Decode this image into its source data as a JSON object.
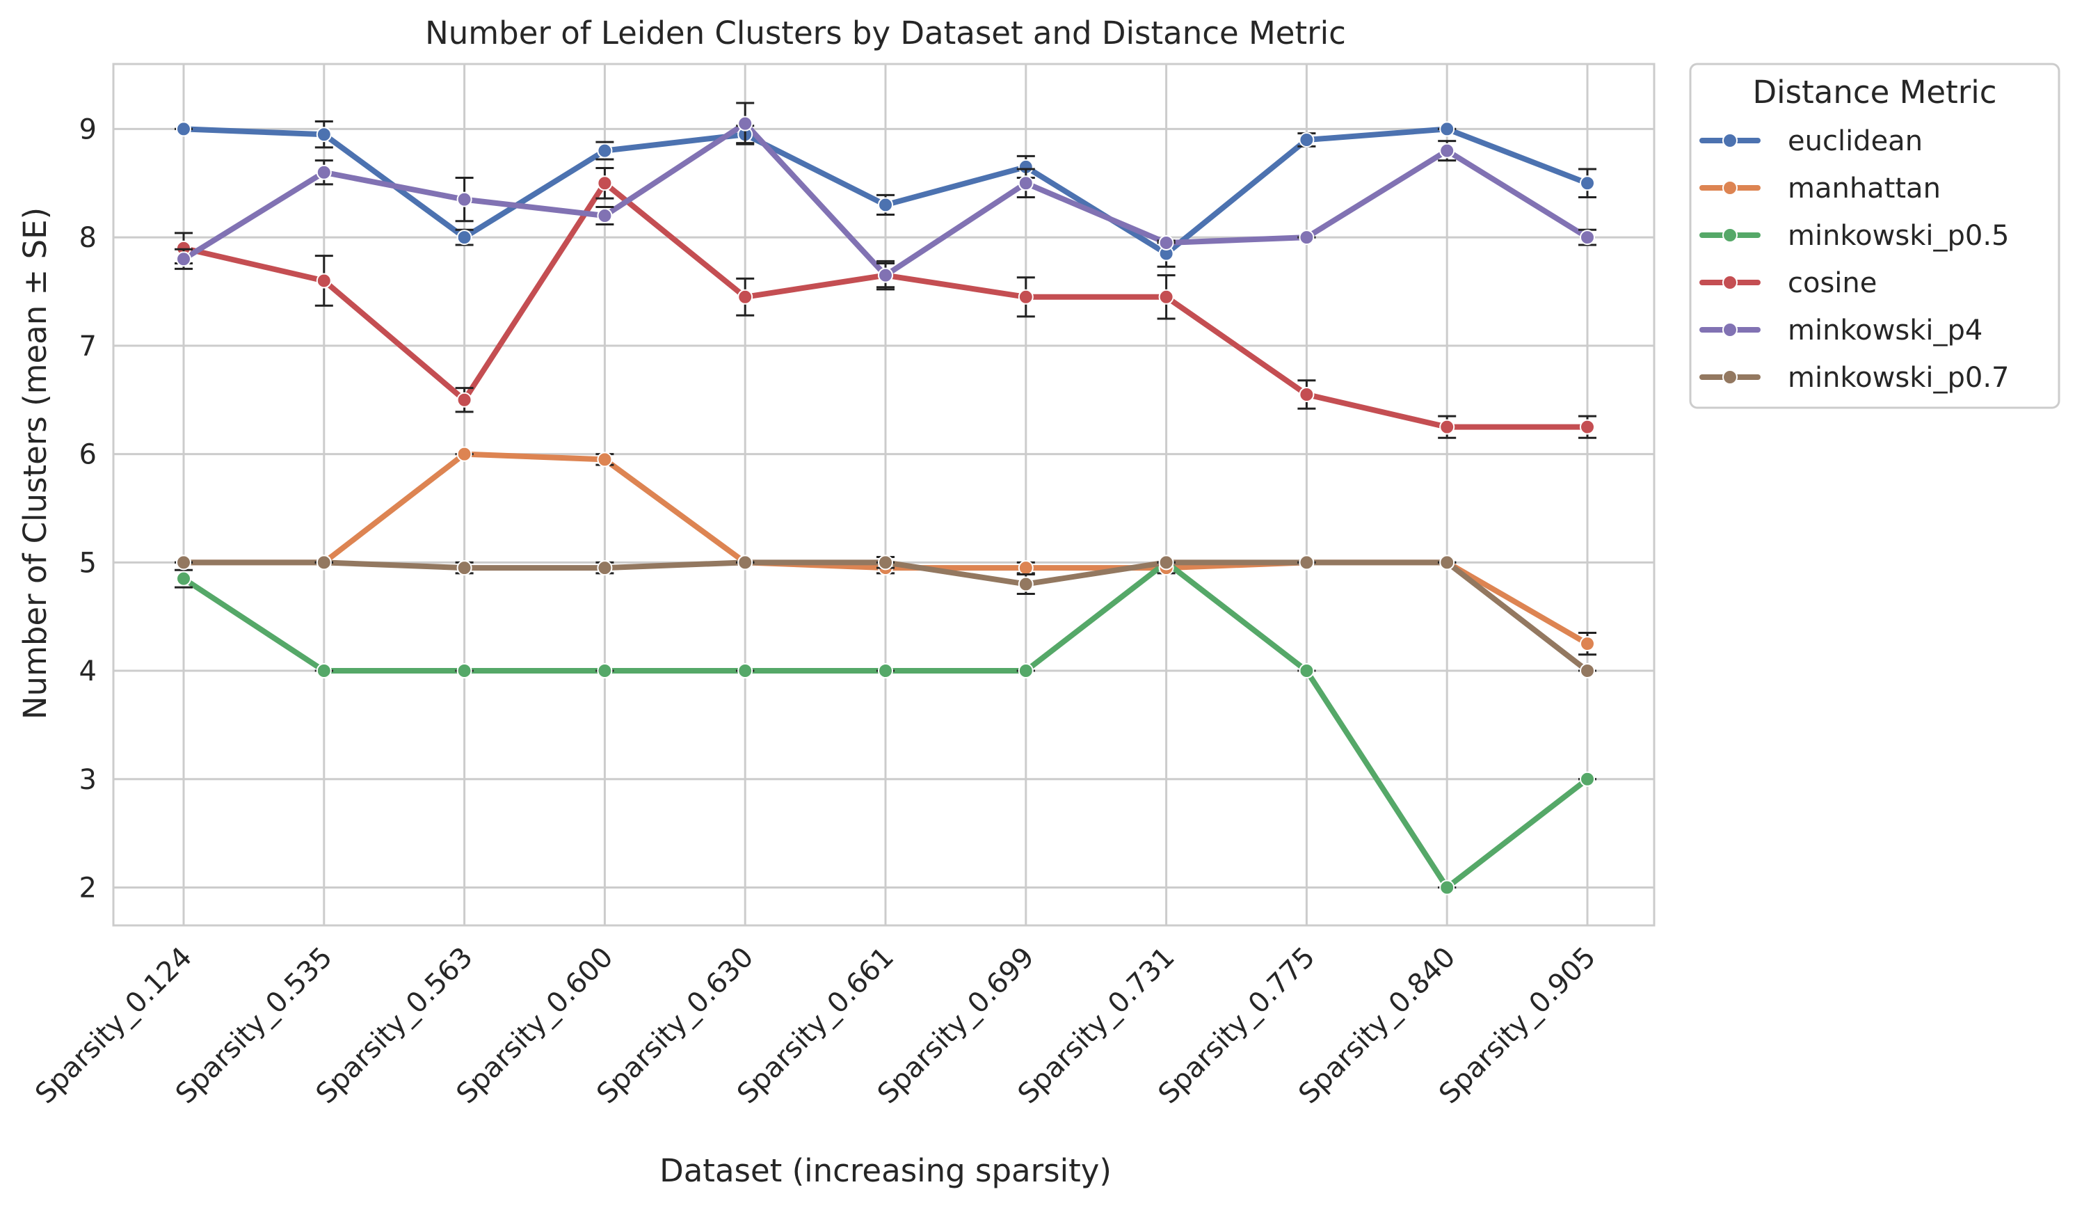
{
  "chart_data": {
    "type": "line",
    "title": "Number of Leiden Clusters by Dataset and Distance Metric",
    "xlabel": "Dataset (increasing sparsity)",
    "ylabel": "Number of Clusters (mean ± SE)",
    "categories": [
      "Sparsity_0.124",
      "Sparsity_0.535",
      "Sparsity_0.563",
      "Sparsity_0.600",
      "Sparsity_0.630",
      "Sparsity_0.661",
      "Sparsity_0.699",
      "Sparsity_0.731",
      "Sparsity_0.775",
      "Sparsity_0.840",
      "Sparsity_0.905"
    ],
    "yticks": [
      2,
      3,
      4,
      5,
      6,
      7,
      8,
      9
    ],
    "ylim": [
      1.65,
      9.6
    ],
    "grid": true,
    "legend": {
      "title": "Distance Metric",
      "placement": "outside-upper-right"
    },
    "series": [
      {
        "name": "euclidean",
        "color": "#4c72b0",
        "values": [
          9.0,
          8.95,
          8.0,
          8.8,
          8.95,
          8.3,
          8.65,
          7.85,
          8.9,
          9.0,
          8.5
        ],
        "se": [
          0.0,
          0.12,
          0.07,
          0.08,
          0.08,
          0.09,
          0.1,
          0.12,
          0.06,
          0.0,
          0.13
        ]
      },
      {
        "name": "manhattan",
        "color": "#dd8452",
        "values": [
          5.0,
          5.0,
          6.0,
          5.95,
          5.0,
          4.95,
          4.95,
          4.95,
          5.0,
          5.0,
          4.25
        ],
        "se": [
          0.0,
          0.0,
          0.0,
          0.05,
          0.0,
          0.05,
          0.05,
          0.05,
          0.0,
          0.0,
          0.1
        ]
      },
      {
        "name": "minkowski_p0.5",
        "color": "#55a868",
        "values": [
          4.85,
          4.0,
          4.0,
          4.0,
          4.0,
          4.0,
          4.0,
          5.0,
          4.0,
          2.0,
          3.0
        ],
        "se": [
          0.08,
          0.0,
          0.0,
          0.0,
          0.0,
          0.0,
          0.0,
          0.0,
          0.0,
          0.0,
          0.0
        ]
      },
      {
        "name": "cosine",
        "color": "#c44e52",
        "values": [
          7.9,
          7.6,
          6.5,
          8.5,
          7.45,
          7.65,
          7.45,
          7.45,
          6.55,
          6.25,
          6.25
        ],
        "se": [
          0.14,
          0.23,
          0.11,
          0.14,
          0.17,
          0.13,
          0.18,
          0.2,
          0.13,
          0.1,
          0.1
        ]
      },
      {
        "name": "minkowski_p4",
        "color": "#8172b3",
        "values": [
          7.8,
          8.6,
          8.35,
          8.2,
          9.05,
          7.65,
          8.5,
          7.95,
          8.0,
          8.8,
          8.0
        ],
        "se": [
          0.09,
          0.11,
          0.2,
          0.08,
          0.19,
          0.11,
          0.13,
          0.0,
          0.0,
          0.09,
          0.07
        ]
      },
      {
        "name": "minkowski_p0.7",
        "color": "#937860",
        "values": [
          5.0,
          5.0,
          4.95,
          4.95,
          5.0,
          5.0,
          4.8,
          5.0,
          5.0,
          5.0,
          4.0
        ],
        "se": [
          0.0,
          0.0,
          0.05,
          0.05,
          0.0,
          0.05,
          0.09,
          0.0,
          0.0,
          0.0,
          0.0
        ]
      }
    ]
  }
}
